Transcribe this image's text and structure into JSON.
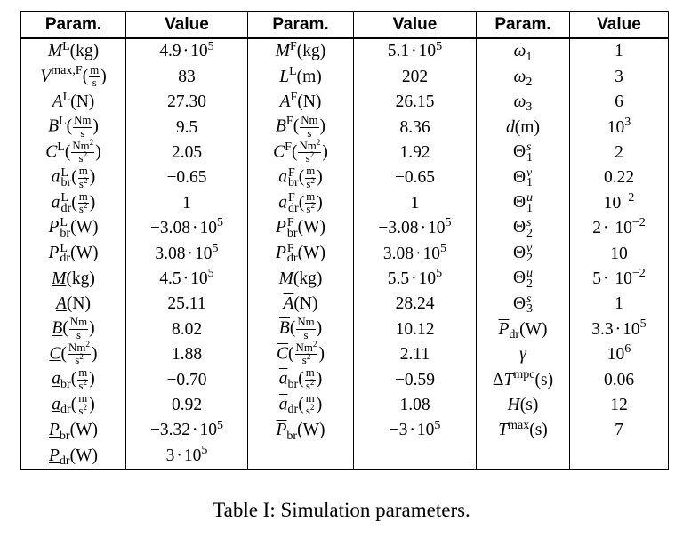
{
  "table": {
    "headers": [
      "Param.",
      "Value",
      "Param.",
      "Value",
      "Param.",
      "Value"
    ],
    "col1": {
      "p1": "M^L(kg)",
      "v1": "4.9·10^5",
      "p2": "V^{max,F}(m/s)",
      "v2": "83",
      "p3": "A^L(N)",
      "v3": "27.30",
      "p4": "B^L(Nm/s)",
      "v4": "9.5",
      "p5": "C^L(Nm^2/s^2)",
      "v5": "2.05",
      "p6": "a^L_br(m/s^2)",
      "v6": "−0.65",
      "p7": "a^L_dr(m/s^2)",
      "v7": "1",
      "p8": "P^L_br(W)",
      "v8": "−3.08·10^5",
      "p9": "P^L_dr(W)",
      "v9": "3.08·10^5",
      "p10": "M_(kg)",
      "v10": "4.5·10^5",
      "p11": "A_(N)",
      "v11": "25.11",
      "p12": "B_(Nm/s)",
      "v12": "8.02",
      "p13": "C_(Nm^2/s^2)",
      "v13": "1.88",
      "p14": "a_br(m/s^2)",
      "v14": "−0.70",
      "p15": "a_dr(m/s^2)",
      "v15": "0.92",
      "p16": "P_br(W)",
      "v16": "−3.32·10^5",
      "p17": "P_dr(W)",
      "v17": "3·10^5"
    },
    "col2": {
      "p1": "M^F(kg)",
      "v1": "5.1·10^5",
      "p2": "L^L(m)",
      "v2": "202",
      "p3": "A^F(N)",
      "v3": "26.15",
      "p4": "B^F(Nm/s)",
      "v4": "8.36",
      "p5": "C^F(Nm^2/s^2)",
      "v5": "1.92",
      "p6": "a^F_br(m/s^2)",
      "v6": "−0.65",
      "p7": "a^F_dr(m/s^2)",
      "v7": "1",
      "p8": "P^F_br(W)",
      "v8": "−3.08·10^5",
      "p9": "P^F_dr(W)",
      "v9": "3.08·10^5",
      "p10": "M¯(kg)",
      "v10": "5.5·10^5",
      "p11": "A¯(N)",
      "v11": "28.24",
      "p12": "B¯(Nm/s)",
      "v12": "10.12",
      "p13": "C¯(Nm^2/s^2)",
      "v13": "2.11",
      "p14": "a¯_br(m/s^2)",
      "v14": "−0.59",
      "p15": "a¯_dr(m/s^2)",
      "v15": "1.08",
      "p16": "P¯_br(W)",
      "v16": "−3·10^5"
    },
    "col3": {
      "p1": "ω_1",
      "v1": "1",
      "p2": "ω_2",
      "v2": "3",
      "p3": "ω_3",
      "v3": "6",
      "p4": "d(m)",
      "v4": "10^3",
      "p5": "Θ^s_1",
      "v5": "2",
      "p6": "Θ^v_1",
      "v6": "0.22",
      "p7": "Θ^u_1",
      "v7": "10^−2",
      "p8": "Θ^s_2",
      "v8": "2· 10^−2",
      "p9": "Θ^v_2",
      "v9": "10",
      "p10": "Θ^u_2",
      "v10": "5· 10^−2",
      "p11": "Θ^s_3",
      "v11": "1",
      "p12": "P¯_dr(W)",
      "v12": "3.3·10^5",
      "p13": "γ",
      "v13": "10^6",
      "p14": "ΔT^mpc(s)",
      "v14": "0.06",
      "p15": "H(s)",
      "v15": "12",
      "p16": "T^max(s)",
      "v16": "7"
    }
  },
  "caption": "Table I: Simulation parameters."
}
